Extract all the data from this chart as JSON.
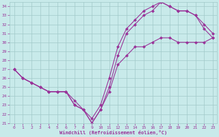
{
  "xlabel": "Windchill (Refroidissement éolien,°C)",
  "bg_color": "#c8eaea",
  "grid_color": "#a0c8c8",
  "line_color": "#993399",
  "xlim": [
    -0.5,
    23.5
  ],
  "ylim": [
    21,
    34.5
  ],
  "xticks": [
    0,
    1,
    2,
    3,
    4,
    5,
    6,
    7,
    8,
    9,
    10,
    11,
    12,
    13,
    14,
    15,
    16,
    17,
    18,
    19,
    20,
    21,
    22,
    23
  ],
  "yticks": [
    21,
    22,
    23,
    24,
    25,
    26,
    27,
    28,
    29,
    30,
    31,
    32,
    33,
    34
  ],
  "series1_x": [
    0,
    1,
    2,
    3,
    4,
    5,
    6,
    7,
    8,
    9,
    10,
    11,
    12,
    13,
    14,
    15,
    16,
    17,
    18,
    19,
    20,
    21,
    22,
    23
  ],
  "series1_y": [
    27,
    26,
    25.5,
    25,
    24.5,
    24.5,
    24.5,
    23.0,
    22.5,
    21.0,
    22.5,
    25.0,
    28.5,
    31.0,
    32.0,
    33.0,
    33.5,
    34.5,
    34.0,
    33.5,
    33.5,
    33.0,
    31.5,
    30.5
  ],
  "series2_x": [
    0,
    1,
    2,
    3,
    4,
    5,
    6,
    7,
    8,
    9,
    10,
    11,
    12,
    13,
    14,
    15,
    16,
    17,
    18,
    19,
    20,
    21,
    22,
    23
  ],
  "series2_y": [
    27,
    26,
    25.5,
    25,
    24.5,
    24.5,
    24.5,
    23.0,
    22.5,
    21.5,
    23.0,
    26.0,
    29.5,
    31.5,
    32.5,
    33.5,
    34.0,
    34.5,
    34.0,
    33.5,
    33.5,
    33.0,
    32.0,
    31.0
  ],
  "series3_x": [
    0,
    1,
    2,
    3,
    4,
    5,
    6,
    7,
    8,
    9,
    10,
    11,
    12,
    13,
    14,
    15,
    16,
    17,
    18,
    19,
    20,
    21,
    22,
    23
  ],
  "series3_y": [
    27,
    26,
    25.5,
    25,
    24.5,
    24.5,
    24.5,
    23.5,
    22.5,
    21.0,
    22.5,
    24.5,
    27.5,
    28.5,
    29.5,
    29.5,
    30.0,
    30.5,
    30.5,
    30.0,
    30.0,
    30.0,
    30.0,
    30.5
  ]
}
